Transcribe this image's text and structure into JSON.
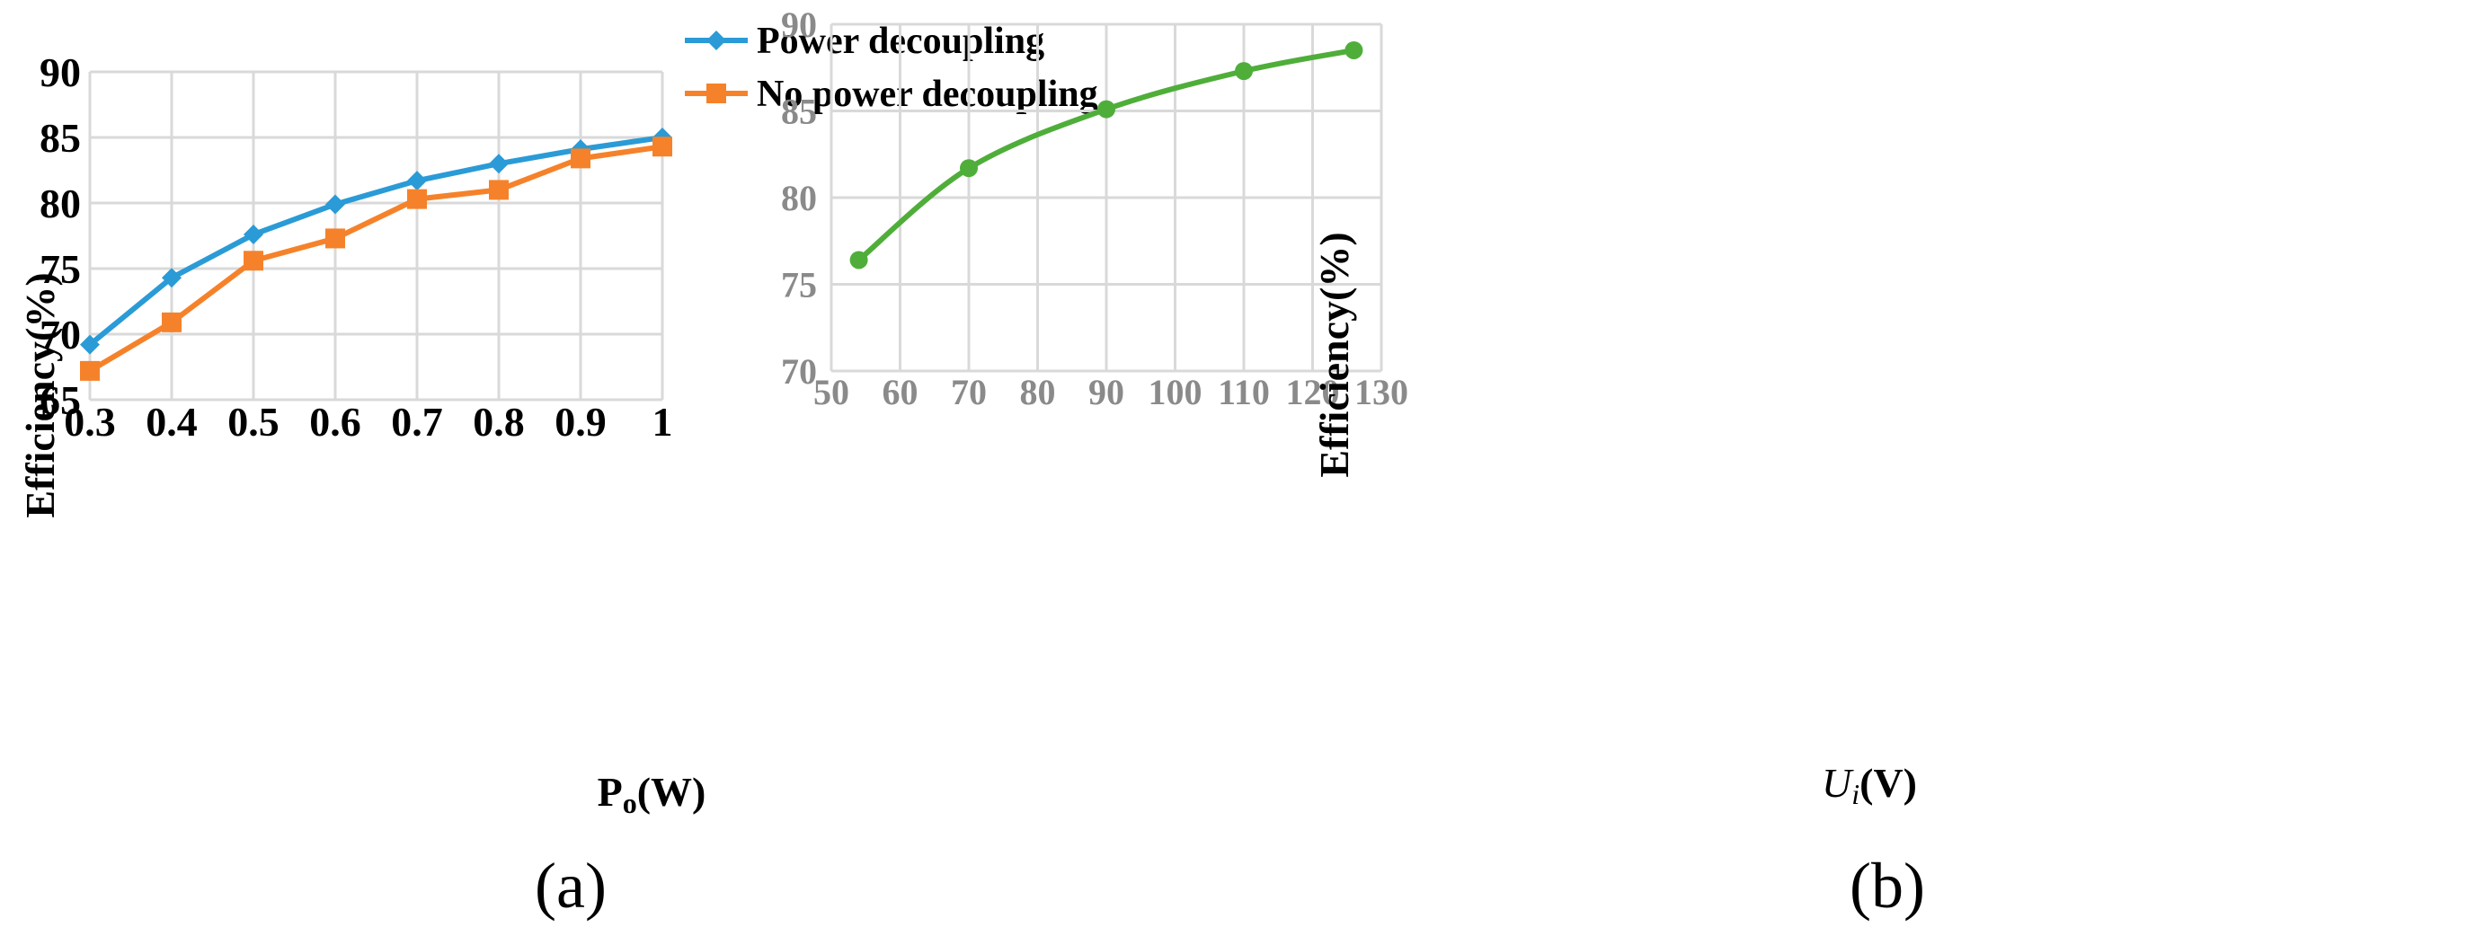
{
  "chart_data": [
    {
      "type": "line",
      "panel_label": "(a)",
      "xlabel_main": "P",
      "xlabel_sub": "o",
      "xlabel_unit": "(W)",
      "ylabel": "Efficiency(%)",
      "x": [
        0.3,
        0.4,
        0.5,
        0.6,
        0.7,
        0.8,
        0.9,
        1
      ],
      "x_tick_labels": [
        "0.3",
        "0.4",
        "0.5",
        "0.6",
        "0.7",
        "0.8",
        "0.9",
        "1"
      ],
      "ylim": [
        65,
        90
      ],
      "y_ticks": [
        65,
        70,
        75,
        80,
        85,
        90
      ],
      "grid": true,
      "legend_position": "top-right",
      "series": [
        {
          "name": "Power decoupling",
          "color": "#2a9bd6",
          "marker": "diamond",
          "values": [
            69.2,
            74.3,
            77.6,
            79.9,
            81.7,
            83.0,
            84.1,
            85.0
          ]
        },
        {
          "name": "No power decoupling",
          "color": "#f5822a",
          "marker": "square",
          "values": [
            67.2,
            70.9,
            75.6,
            77.3,
            80.3,
            81.0,
            83.4,
            84.3
          ]
        }
      ]
    },
    {
      "type": "line",
      "panel_label": "(b)",
      "xlabel_main": "U",
      "xlabel_sub": "i",
      "xlabel_unit": "(V)",
      "ylabel": "Efficiency(%)",
      "xlim": [
        50,
        130
      ],
      "x_ticks": [
        50,
        60,
        70,
        80,
        90,
        100,
        110,
        120,
        130
      ],
      "ylim": [
        70,
        90
      ],
      "y_ticks": [
        70,
        75,
        80,
        85,
        90
      ],
      "grid": true,
      "smooth": true,
      "series": [
        {
          "color": "#4fae3a",
          "marker": "circle",
          "x": [
            54,
            70,
            90,
            110,
            126
          ],
          "values": [
            76.4,
            81.7,
            85.1,
            87.3,
            88.5
          ]
        }
      ]
    }
  ]
}
